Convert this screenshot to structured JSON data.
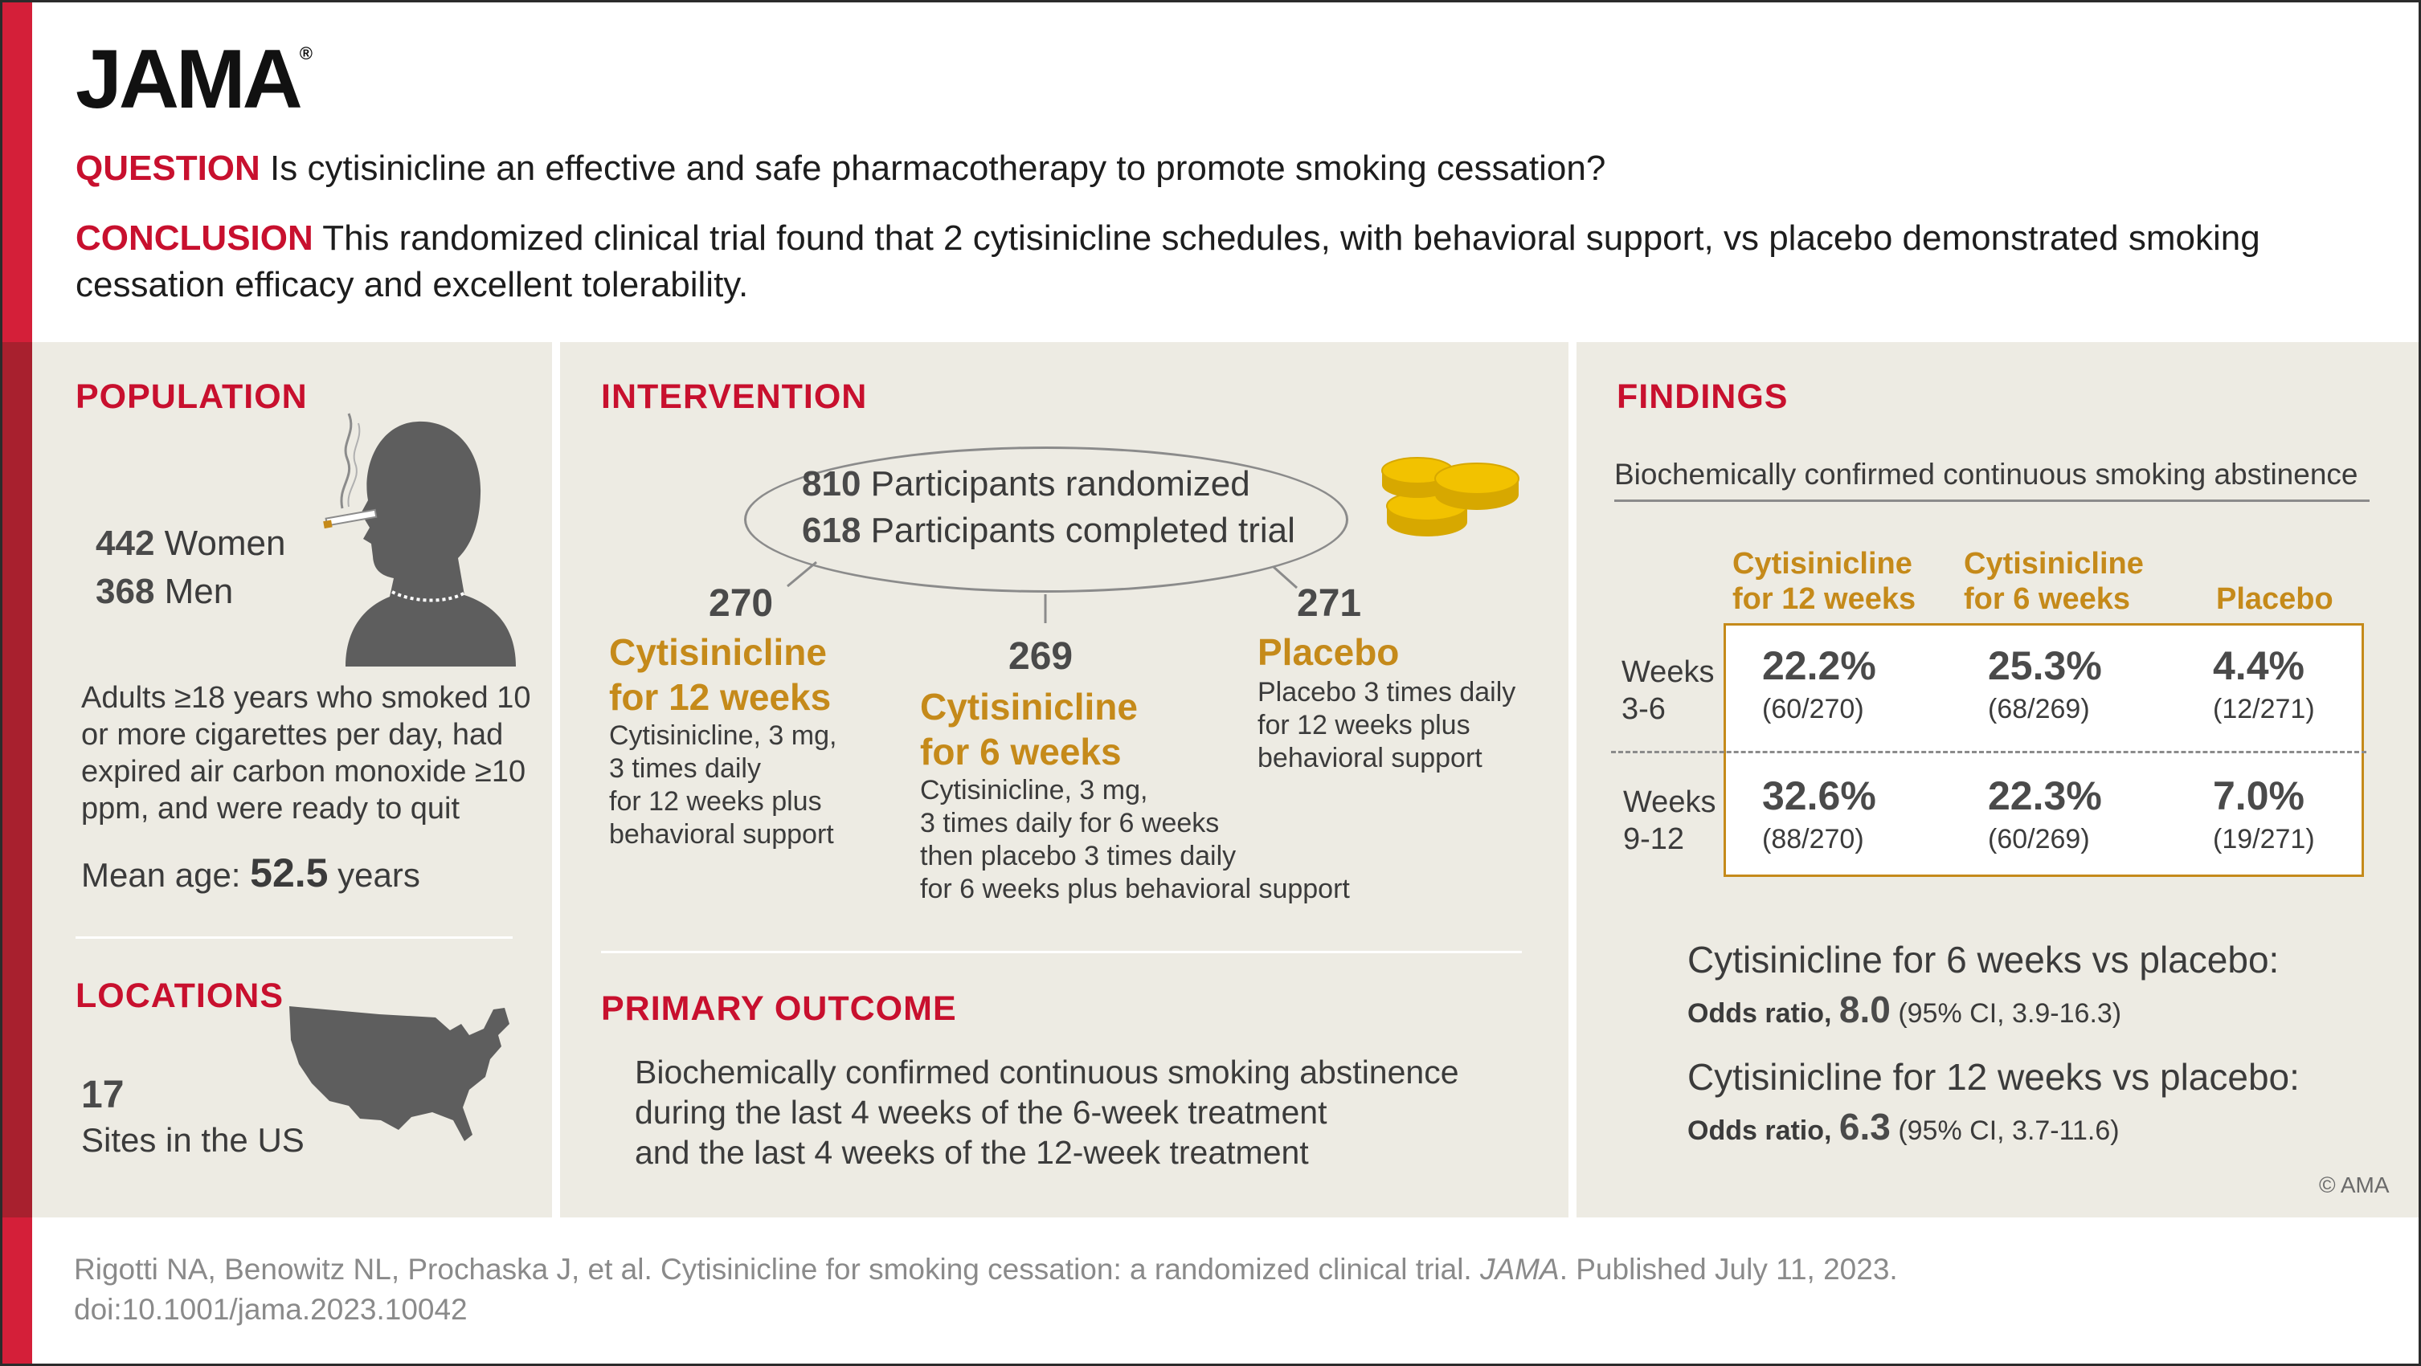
{
  "logo": "JAMA",
  "logo_mark": "®",
  "question": {
    "label": "QUESTION",
    "text": "Is cytisinicline an effective and safe pharmacotherapy to promote smoking cessation?"
  },
  "conclusion": {
    "label": "CONCLUSION",
    "text": "This randomized clinical trial found that 2 cytisinicline schedules, with behavioral support, vs placebo demonstrated smoking cessation efficacy and excellent tolerability."
  },
  "population": {
    "title": "POPULATION",
    "women_n": "442",
    "women_label": "Women",
    "men_n": "368",
    "men_label": "Men",
    "description": "Adults ≥18 years who smoked 10 or more cigarettes per day, had expired air carbon monoxide ≥10 ppm, and were ready to quit",
    "mean_age_label": "Mean age:",
    "mean_age_value": "52.5",
    "mean_age_unit": "years"
  },
  "locations": {
    "title": "LOCATIONS",
    "count": "17",
    "label": "Sites in the US"
  },
  "intervention": {
    "title": "INTERVENTION",
    "randomized_n": "810",
    "randomized_label": "Participants randomized",
    "completed_n": "618",
    "completed_label": "Participants completed trial",
    "arms": [
      {
        "n": "270",
        "title_line1": "Cytisinicline",
        "title_line2": "for 12 weeks",
        "desc": [
          "Cytisinicline, 3 mg,",
          "3 times daily",
          "for 12 weeks plus",
          "behavioral support"
        ]
      },
      {
        "n": "269",
        "title_line1": "Cytisinicline",
        "title_line2": "for 6 weeks",
        "desc": [
          "Cytisinicline, 3 mg,",
          "3 times daily for 6 weeks",
          "then placebo 3 times daily",
          "for 6 weeks plus behavioral support"
        ]
      },
      {
        "n": "271",
        "title_line1": "Placebo",
        "title_line2": "",
        "desc": [
          "Placebo 3 times daily",
          "for 12 weeks plus",
          "behavioral support"
        ]
      }
    ]
  },
  "primary_outcome": {
    "title": "PRIMARY OUTCOME",
    "lines": [
      "Biochemically confirmed continuous smoking abstinence",
      "during the last 4 weeks of the 6-week treatment",
      "and the last 4 weeks of the 12-week treatment"
    ]
  },
  "findings": {
    "title": "FINDINGS",
    "subtitle": "Biochemically confirmed continuous smoking abstinence",
    "columns": [
      {
        "line1": "Cytisinicline",
        "line2": "for 12 weeks"
      },
      {
        "line1": "Cytisinicline",
        "line2": "for 6 weeks"
      },
      {
        "line1": "Placebo",
        "line2": ""
      }
    ],
    "rows": [
      {
        "label_line1": "Weeks",
        "label_line2": "3-6",
        "cells": [
          {
            "pct": "22.2%",
            "frac": "(60/270)"
          },
          {
            "pct": "25.3%",
            "frac": "(68/269)"
          },
          {
            "pct": "4.4%",
            "frac": "(12/271)"
          }
        ]
      },
      {
        "label_line1": "Weeks",
        "label_line2": "9-12",
        "cells": [
          {
            "pct": "32.6%",
            "frac": "(88/270)"
          },
          {
            "pct": "22.3%",
            "frac": "(60/269)"
          },
          {
            "pct": "7.0%",
            "frac": "(19/271)"
          }
        ]
      }
    ],
    "comparisons": [
      {
        "heading": "Cytisinicline for 6 weeks vs placebo:",
        "or_label": "Odds ratio,",
        "or_value": "8.0",
        "ci": "(95% CI, 3.9-16.3)"
      },
      {
        "heading": "Cytisinicline for 12 weeks vs placebo:",
        "or_label": "Odds ratio,",
        "or_value": "6.3",
        "ci": "(95% CI, 3.7-11.6)"
      }
    ],
    "copyright": "© AMA"
  },
  "citation": {
    "authors_title": "Rigotti NA, Benowitz NL, Prochaska J, et al. Cytisinicline for smoking cessation: a randomized clinical trial.",
    "journal": "JAMA",
    "published": ". Published July 11, 2023.",
    "doi": "doi:10.1001/jama.2023.10042"
  },
  "colors": {
    "red_accent": "#c8102e",
    "gold_accent": "#c58a1a",
    "panel_bg": "#edebe3",
    "pill_yellow": "#f2c200"
  },
  "icons": [
    "smoker-silhouette-icon",
    "pills-icon",
    "us-map-icon"
  ]
}
